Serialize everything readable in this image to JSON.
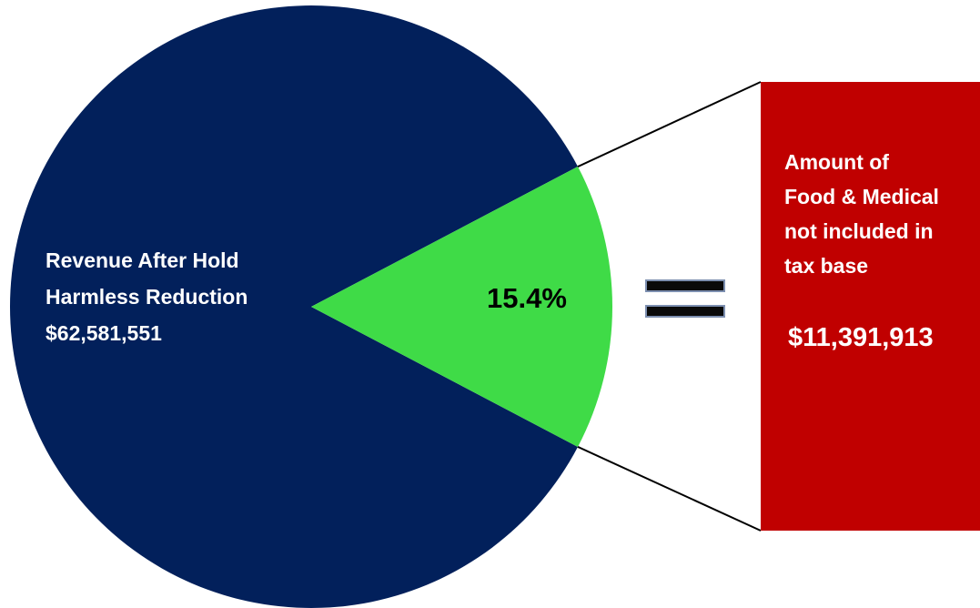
{
  "chart_data": {
    "type": "pie",
    "slices": [
      {
        "label_lines": [
          "Revenue After Hold",
          "Harmless Reduction",
          "$62,581,551"
        ],
        "value": 84.6,
        "color": "#02205b"
      },
      {
        "label": "15.4%",
        "value": 15.4,
        "color": "#3fdb47"
      }
    ],
    "callout": {
      "label_lines": [
        "Amount of",
        "Food & Medical",
        "not included in",
        "tax base"
      ],
      "amount": "$11,391,913",
      "color": "#c00000"
    },
    "equals_color": "#000000"
  }
}
